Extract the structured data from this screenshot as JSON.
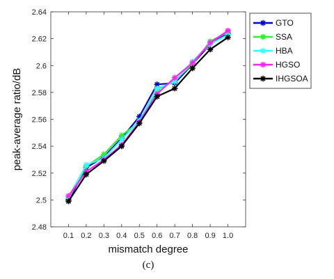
{
  "chart_data": {
    "type": "line",
    "x": [
      0.1,
      0.2,
      0.3,
      0.4,
      0.5,
      0.6,
      0.7,
      0.8,
      0.9,
      1.0
    ],
    "x_tick_labels": [
      "0.1",
      "0.2",
      "0.3",
      "0.4",
      "0.5",
      "0.6",
      "0.7",
      "0.8",
      "0.9",
      "1.0"
    ],
    "y_tick_labels": [
      "2.48",
      "2.5",
      "2.52",
      "2.54",
      "2.56",
      "2.58",
      "2.6",
      "2.62",
      "2.64"
    ],
    "series": [
      {
        "name": "GTO",
        "color": "#0000cc",
        "values": [
          2.5,
          2.524,
          2.532,
          2.546,
          2.562,
          2.586,
          2.587,
          2.601,
          2.616,
          2.624
        ]
      },
      {
        "name": "SSA",
        "color": "#33ee33",
        "values": [
          2.501,
          2.525,
          2.534,
          2.548,
          2.558,
          2.582,
          2.589,
          2.601,
          2.618,
          2.625
        ]
      },
      {
        "name": "HBA",
        "color": "#33ffff",
        "values": [
          2.502,
          2.526,
          2.531,
          2.545,
          2.559,
          2.583,
          2.588,
          2.603,
          2.616,
          2.623
        ]
      },
      {
        "name": "HGSO",
        "color": "#ff22ff",
        "values": [
          2.503,
          2.521,
          2.53,
          2.541,
          2.558,
          2.579,
          2.591,
          2.602,
          2.617,
          2.626
        ]
      },
      {
        "name": "IHGSOA",
        "color": "#000000",
        "values": [
          2.499,
          2.519,
          2.529,
          2.54,
          2.557,
          2.577,
          2.583,
          2.598,
          2.612,
          2.621
        ]
      }
    ],
    "xlabel": "mismatch degree",
    "ylabel": "peak-average ratio/dB",
    "xlim": [
      0,
      1.1
    ],
    "ylim": [
      2.48,
      2.64
    ],
    "grid": false,
    "legend_position": "top-right outside"
  },
  "caption": "(c)"
}
